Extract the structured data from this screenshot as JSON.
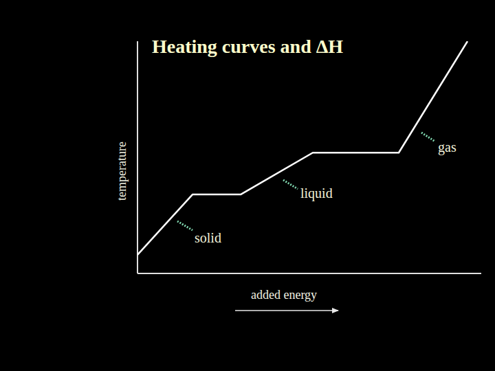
{
  "chart_data": {
    "type": "line",
    "title": "Heating curves and ΔH",
    "x_label": "added energy",
    "y_label": "temperature",
    "x": [
      0,
      16,
      30,
      51,
      76,
      96
    ],
    "values": [
      8,
      34,
      34,
      52,
      52,
      100
    ],
    "color": "#ffffff",
    "xlim": [
      0,
      100
    ],
    "ylim": [
      0,
      100
    ],
    "tick_labels": false,
    "grid": false,
    "annotations": [
      "solid",
      "liquid",
      "gas"
    ]
  }
}
